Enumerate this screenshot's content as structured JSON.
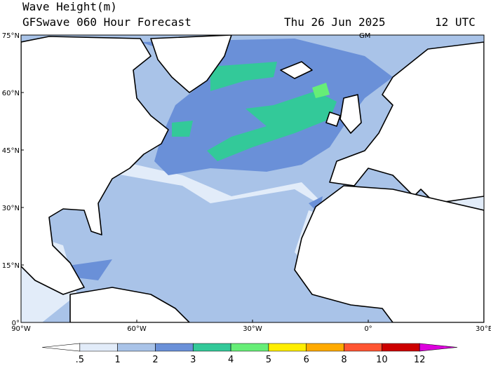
{
  "header": {
    "title": "Wave Height(m)",
    "subtitle": "GFSwave 060 Hour Forecast",
    "date": "Thu 26 Jun 2025",
    "time": "12 UTC"
  },
  "map": {
    "lat_labels": [
      "75°N",
      "60°N",
      "45°N",
      "30°N",
      "15°N",
      "0°"
    ],
    "lon_labels": [
      "90°W",
      "60°W",
      "30°W",
      "0°",
      "30°E"
    ],
    "meridian_label": "GM"
  },
  "colorbar": {
    "labels": [
      ".5",
      "1",
      "2",
      "3",
      "4",
      "5",
      "6",
      "8",
      "10",
      "12"
    ],
    "colors": [
      "#ffffff",
      "#e2ecf9",
      "#a9c3e8",
      "#6a90d8",
      "#33c999",
      "#66ee77",
      "#ffee00",
      "#ffaa00",
      "#ff5533",
      "#cc0000",
      "#dd00dd"
    ]
  }
}
